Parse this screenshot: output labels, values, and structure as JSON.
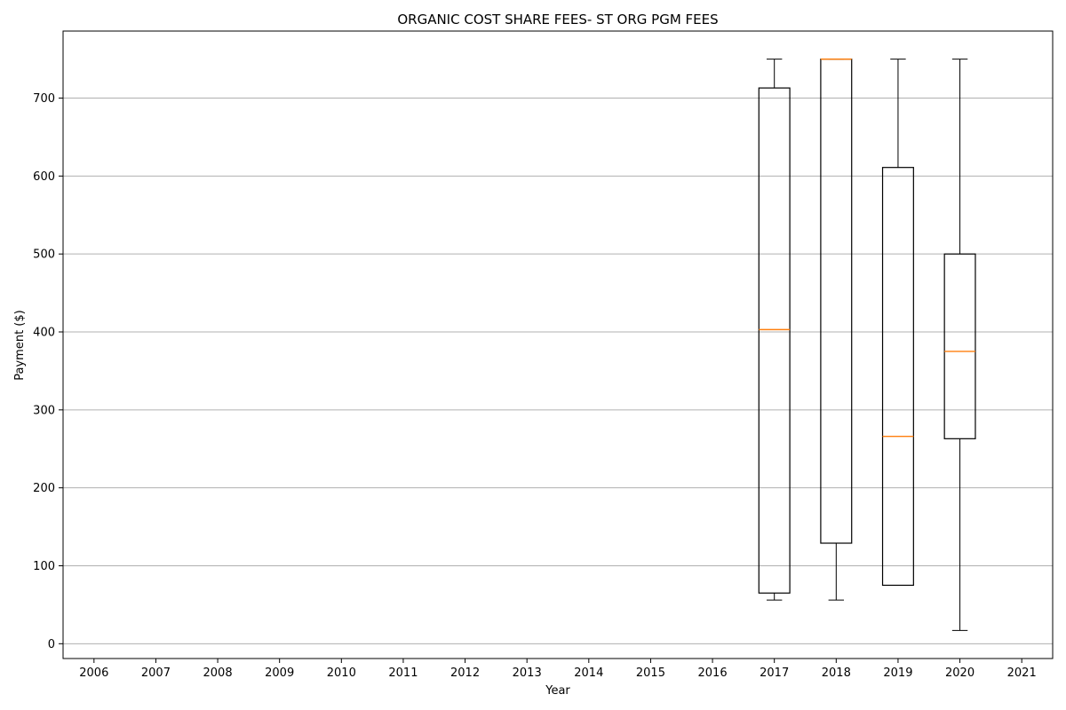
{
  "chart_data": {
    "type": "box",
    "title": "ORGANIC COST SHARE FEES- ST ORG PGM FEES",
    "xlabel": "Year",
    "ylabel": "Payment ($)",
    "categories": [
      "2006",
      "2007",
      "2008",
      "2009",
      "2010",
      "2011",
      "2012",
      "2013",
      "2014",
      "2015",
      "2016",
      "2017",
      "2018",
      "2019",
      "2020",
      "2021"
    ],
    "ylim": [
      -19,
      786
    ],
    "yticks": [
      0,
      100,
      200,
      300,
      400,
      500,
      600,
      700
    ],
    "grid": "y",
    "boxes": [
      {
        "category": "2017",
        "whisker_low": 56,
        "q1": 65,
        "median": 403,
        "q3": 713,
        "whisker_high": 750
      },
      {
        "category": "2018",
        "whisker_low": 56,
        "q1": 129,
        "median": 750,
        "q3": 750,
        "whisker_high": 750
      },
      {
        "category": "2019",
        "whisker_low": 75,
        "q1": 75,
        "median": 266,
        "q3": 611,
        "whisker_high": 750
      },
      {
        "category": "2020",
        "whisker_low": 17,
        "q1": 263,
        "median": 375,
        "q3": 500,
        "whisker_high": 750
      }
    ],
    "colors": {
      "box": "#000000",
      "median": "#ff7f0e",
      "grid": "#b0b0b0"
    }
  }
}
